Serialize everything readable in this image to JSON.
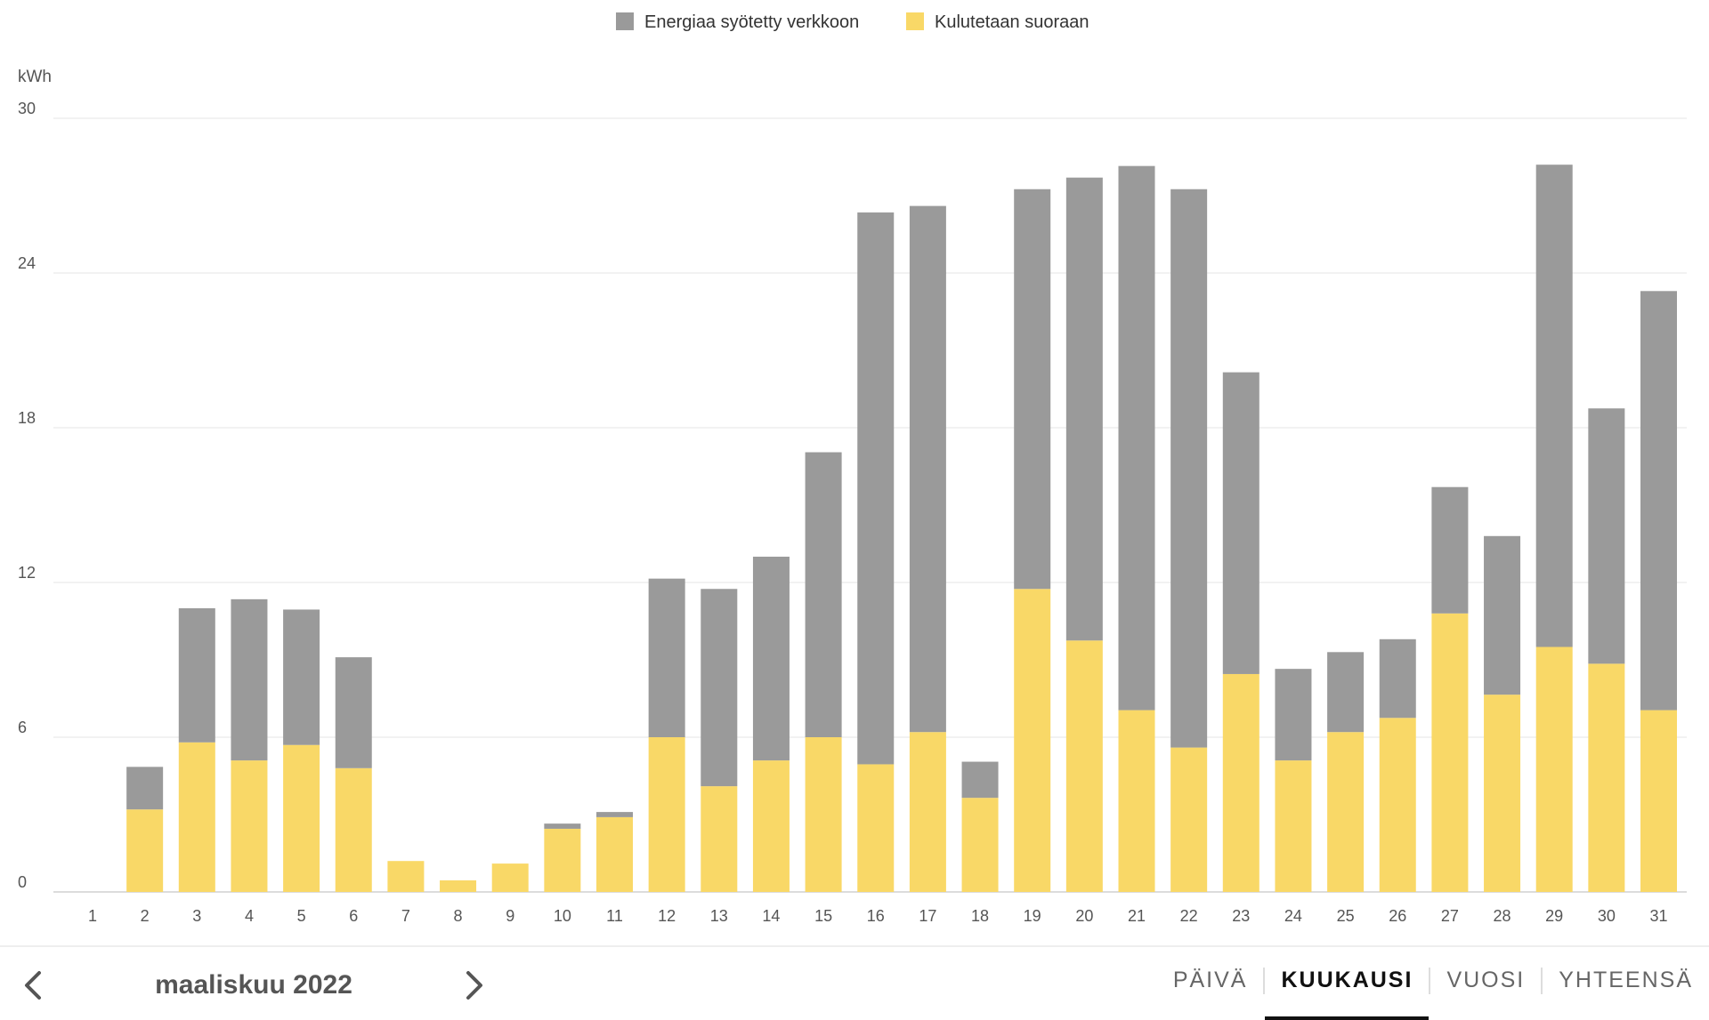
{
  "colors": {
    "grid_feed": "#9a9a9a",
    "direct": "#f9d867",
    "gridline": "#e6e6e6",
    "axis_text": "#555555"
  },
  "chart_data": {
    "type": "bar",
    "stacked": true,
    "unit": "kWh",
    "x": [
      "1",
      "2",
      "3",
      "4",
      "5",
      "6",
      "7",
      "8",
      "9",
      "10",
      "11",
      "12",
      "13",
      "14",
      "15",
      "16",
      "17",
      "18",
      "19",
      "20",
      "21",
      "22",
      "23",
      "24",
      "25",
      "26",
      "27",
      "28",
      "29",
      "30",
      "31"
    ],
    "series": [
      {
        "name": "Kulutetaan suoraan",
        "color": "#f9d867",
        "values": [
          0,
          3.2,
          5.8,
          5.1,
          5.7,
          4.8,
          1.2,
          0.45,
          1.1,
          2.45,
          2.9,
          6.0,
          4.1,
          5.1,
          6.0,
          4.95,
          6.2,
          3.65,
          11.75,
          9.75,
          7.05,
          5.6,
          8.45,
          5.1,
          6.2,
          6.75,
          10.8,
          7.65,
          9.5,
          8.85,
          7.05
        ]
      },
      {
        "name": "Energiaa syötetty verkkoon",
        "color": "#9a9a9a",
        "values": [
          0,
          1.65,
          5.2,
          6.25,
          5.25,
          4.3,
          0,
          0,
          0,
          0.2,
          0.2,
          6.15,
          7.65,
          7.9,
          11.05,
          21.4,
          20.4,
          1.4,
          15.5,
          17.95,
          21.1,
          21.65,
          11.7,
          3.55,
          3.1,
          3.05,
          4.9,
          6.15,
          18.7,
          9.9,
          16.25
        ]
      }
    ],
    "ylabel": "kWh",
    "ylim": [
      0,
      30
    ],
    "yticks": [
      0,
      6,
      12,
      18,
      24,
      30
    ],
    "grid": true,
    "legend_position": "top-center"
  },
  "footer": {
    "period": "maaliskuu 2022",
    "tabs": [
      {
        "label": "PÄIVÄ",
        "active": false
      },
      {
        "label": "KUUKAUSI",
        "active": true
      },
      {
        "label": "VUOSI",
        "active": false
      },
      {
        "label": "YHTEENSÄ",
        "active": false
      }
    ]
  }
}
